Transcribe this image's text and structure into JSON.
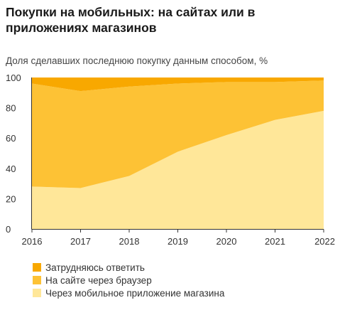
{
  "chart_data": {
    "type": "area",
    "stacked": true,
    "title": "Покупки на мобильных: на сайтах или в приложениях магазинов",
    "ylabel": "Доля сделавших последнюю покупку данным способом, %",
    "x": [
      "2016",
      "2017",
      "2018",
      "2019",
      "2020",
      "2021",
      "2022"
    ],
    "yticks": [
      "0",
      "20",
      "40",
      "60",
      "80",
      "100"
    ],
    "ylim": [
      0,
      100
    ],
    "grid": false,
    "legend_position": "bottom-left",
    "series": [
      {
        "name": "Через мобильное приложение магазина",
        "values": [
          28,
          27,
          35,
          51,
          62,
          72,
          78
        ],
        "color": "#ffe799"
      },
      {
        "name": "На сайте через браузер",
        "values": [
          68,
          64,
          59,
          45,
          35,
          25,
          20
        ],
        "color": "#fdc235"
      },
      {
        "name": "Затрудняюсь ответить",
        "values": [
          4,
          9,
          6,
          4,
          3,
          3,
          2
        ],
        "color": "#f8a800"
      }
    ],
    "legend_order": [
      2,
      1,
      0
    ]
  }
}
